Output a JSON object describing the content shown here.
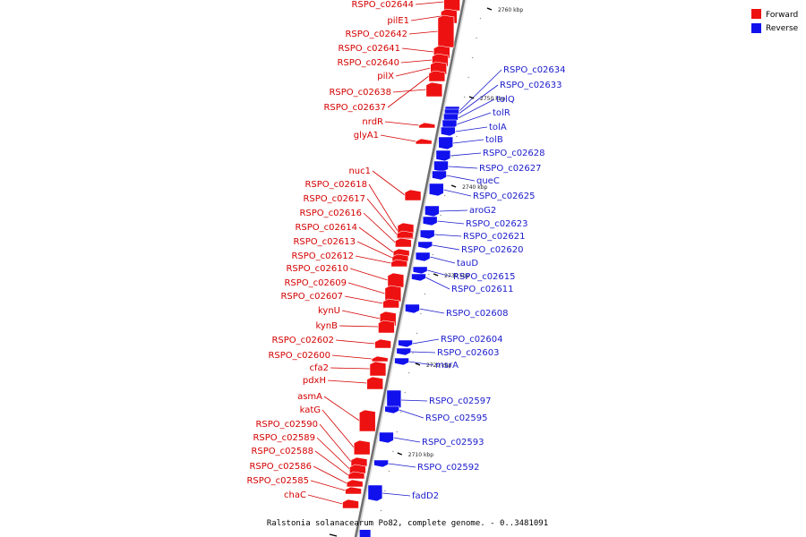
{
  "title": "Ralstonia solanacearum Po82, complete genome. - 0..3481091",
  "legend": [
    {
      "label": "Forward",
      "color": "#ee1111"
    },
    {
      "label": "Reverse",
      "color": "#1111ee"
    }
  ],
  "scale_ticks": [
    "2760 kbp",
    "2750 kbp",
    "2740 kbp",
    "2730 kbp",
    "2720 kbp",
    "2710 kbp"
  ],
  "forward_genes": [
    "RSPO_c02644",
    "pilE1",
    "RSPO_c02642",
    "RSPO_c02641",
    "RSPO_c02640",
    "pilX",
    "RSPO_c02638",
    "RSPO_c02637",
    "nrdR",
    "glyA1",
    "nuc1",
    "RSPO_c02618",
    "RSPO_c02617",
    "RSPO_c02616",
    "RSPO_c02614",
    "RSPO_c02613",
    "RSPO_c02612",
    "RSPO_c02610",
    "RSPO_c02609",
    "RSPO_c02607",
    "kynU",
    "kynB",
    "RSPO_c02602",
    "RSPO_c02600",
    "cfa2",
    "pdxH",
    "asmA",
    "katG",
    "RSPO_c02590",
    "RSPO_c02589",
    "RSPO_c02588",
    "RSPO_c02586",
    "RSPO_c02585",
    "chaC"
  ],
  "reverse_genes": [
    "RSPO_c02634",
    "RSPO_c02633",
    "tolQ",
    "tolR",
    "tolA",
    "tolB",
    "RSPO_c02628",
    "RSPO_c02627",
    "queC",
    "RSPO_c02625",
    "aroG2",
    "RSPO_c02623",
    "RSPO_c02621",
    "RSPO_c02620",
    "tauD",
    "RSPO_c02615",
    "RSPO_c02611",
    "RSPO_c02608",
    "RSPO_c02604",
    "RSPO_c02603",
    "msrA",
    "RSPO_c02597",
    "RSPO_c02595",
    "RSPO_c02593",
    "RSPO_c02592",
    "fadD2"
  ]
}
